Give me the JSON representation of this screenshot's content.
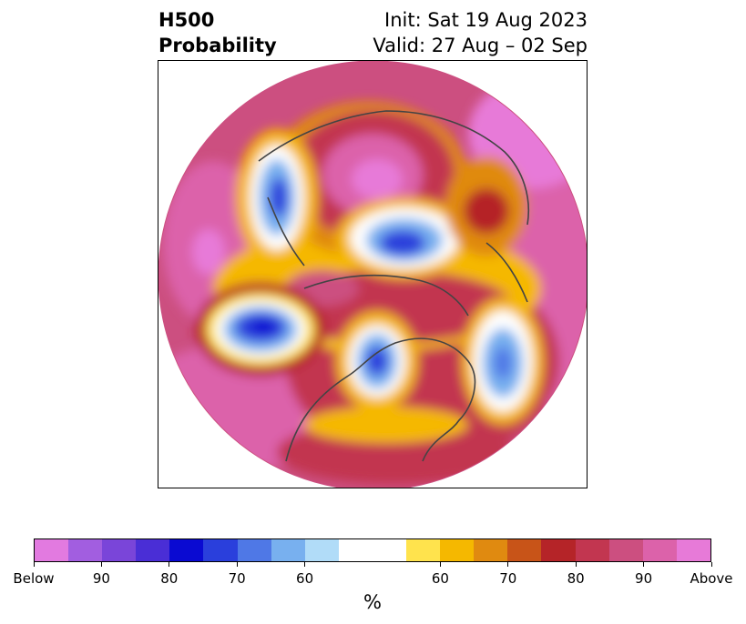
{
  "header": {
    "title_line1": "H500",
    "title_line2": "Probability",
    "init": "Init: Sat 19 Aug 2023",
    "valid": "Valid: 27 Aug – 02 Sep"
  },
  "map": {
    "projection": "north-polar-stereographic",
    "variable": "500 hPa height anomaly probability"
  },
  "colorbar": {
    "unit": "%",
    "colors": [
      "#e27ae0",
      "#a25ee0",
      "#7a45d9",
      "#4a2ed6",
      "#0a0ad2",
      "#2a3fdc",
      "#4f78e6",
      "#78b0ef",
      "#b1dcf8",
      "#ffffff",
      "#ffe34d",
      "#f5b800",
      "#e08a10",
      "#c85418",
      "#b52428",
      "#c23650",
      "#cc4f80",
      "#dc62aa",
      "#e77ad8"
    ],
    "weights": [
      1,
      1,
      1,
      1,
      1,
      1,
      1,
      1,
      1,
      2,
      1,
      1,
      1,
      1,
      1,
      1,
      1,
      1,
      1
    ],
    "labels": [
      "Below",
      "90",
      "80",
      "70",
      "60",
      "60",
      "70",
      "80",
      "90",
      "Above"
    ]
  }
}
